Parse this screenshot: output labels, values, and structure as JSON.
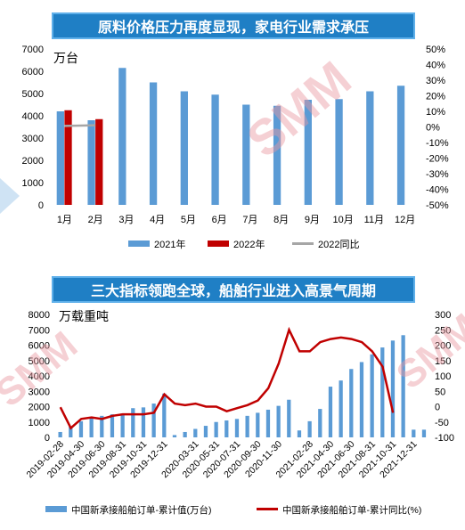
{
  "banner_top": "原料价格压力再度显现，家电行业需求承压",
  "banner_bottom": "三大指标领跑全球，船舶行业进入高景气周期",
  "watermark": "SMM",
  "chart_data": [
    {
      "type": "bar",
      "unit_label": "万台",
      "categories": [
        "1月",
        "2月",
        "3月",
        "4月",
        "5月",
        "6月",
        "7月",
        "8月",
        "9月",
        "10月",
        "11月",
        "12月"
      ],
      "series": [
        {
          "name": "2021年",
          "type": "bar",
          "axis": "left",
          "color": "#5b9bd5",
          "values": [
            4200,
            3800,
            6150,
            5500,
            5100,
            4950,
            4500,
            4450,
            4720,
            4750,
            5100,
            5350
          ]
        },
        {
          "name": "2022年",
          "type": "bar",
          "axis": "left",
          "color": "#c00000",
          "values": [
            4250,
            3850,
            null,
            null,
            null,
            null,
            null,
            null,
            null,
            null,
            null,
            null
          ]
        },
        {
          "name": "2022同比",
          "type": "line",
          "axis": "right",
          "color": "#a6a6a6",
          "values": [
            0.6,
            1.1,
            null,
            null,
            null,
            null,
            null,
            null,
            null,
            null,
            null,
            null
          ]
        }
      ],
      "ylim_left": [
        0,
        7000
      ],
      "yticks_left": [
        0,
        1000,
        2000,
        3000,
        4000,
        5000,
        6000,
        7000
      ],
      "ylim_right": [
        -50,
        50
      ],
      "yticks_right": [
        "-50%",
        "-40%",
        "-30%",
        "-20%",
        "-10%",
        "0%",
        "10%",
        "20%",
        "30%",
        "40%",
        "50%"
      ],
      "legend_position": "bottom",
      "grid": false
    },
    {
      "type": "bar",
      "unit_label": "万载重吨",
      "categories": [
        "2019-02-28",
        "2019-03-31",
        "2019-04-30",
        "2019-05-31",
        "2019-06-30",
        "2019-07-31",
        "2019-08-31",
        "2019-09-30",
        "2019-10-31",
        "2019-11-30",
        "2019-12-31",
        "2020-01-31",
        "2020-02-29",
        "2020-03-31",
        "2020-04-30",
        "2020-05-31",
        "2020-06-30",
        "2020-07-31",
        "2020-08-31",
        "2020-09-30",
        "2020-10-31",
        "2020-11-30",
        "2020-12-31",
        "2021-01-31",
        "2021-02-28",
        "2021-03-31",
        "2021-04-30",
        "2021-05-31",
        "2021-06-30",
        "2021-07-31",
        "2021-08-31",
        "2021-09-30",
        "2021-10-31",
        "2021-11-30",
        "2021-12-31",
        "2022-01-31"
      ],
      "tick_labels": [
        "2019-02-28",
        "2019-04-30",
        "2019-06-30",
        "2019-08-31",
        "2019-10-31",
        "2019-12-31",
        "2020-03-31",
        "2020-05-31",
        "2020-07-31",
        "2020-09-30",
        "2020-11-30",
        "2021-02-28",
        "2021-04-30",
        "2021-06-30",
        "2021-08-31",
        "2021-10-31",
        "2021-12-31"
      ],
      "series": [
        {
          "name": "中国新承接船舶订单-累计值(万台)",
          "type": "bar",
          "axis": "left",
          "color": "#5b9bd5",
          "values": [
            350,
            700,
            1050,
            1300,
            1400,
            1500,
            1550,
            1900,
            1950,
            2200,
            2850,
            150,
            350,
            550,
            750,
            1000,
            1100,
            1200,
            1400,
            1600,
            1800,
            2050,
            2450,
            450,
            1050,
            1850,
            3300,
            3700,
            4450,
            4900,
            5400,
            5850,
            6300,
            6650,
            500,
            500
          ]
        },
        {
          "name": "中国新承接船舶订单-累计同比(%)",
          "type": "line",
          "axis": "right",
          "color": "#c00000",
          "values": [
            -2,
            -70,
            -40,
            -35,
            -40,
            -30,
            -25,
            -25,
            -25,
            -20,
            40,
            10,
            5,
            10,
            0,
            0,
            -15,
            -5,
            5,
            20,
            60,
            140,
            250,
            180,
            180,
            210,
            220,
            225,
            220,
            210,
            180,
            130,
            -20,
            null,
            null,
            null
          ]
        }
      ],
      "ylim_left": [
        0,
        8000
      ],
      "yticks_left": [
        0,
        1000,
        2000,
        3000,
        4000,
        5000,
        6000,
        7000,
        8000
      ],
      "ylim_right": [
        -100,
        300
      ],
      "yticks_right": [
        -100,
        -50,
        0,
        50,
        100,
        150,
        200,
        250,
        300
      ],
      "legend_position": "bottom",
      "grid": false
    }
  ]
}
